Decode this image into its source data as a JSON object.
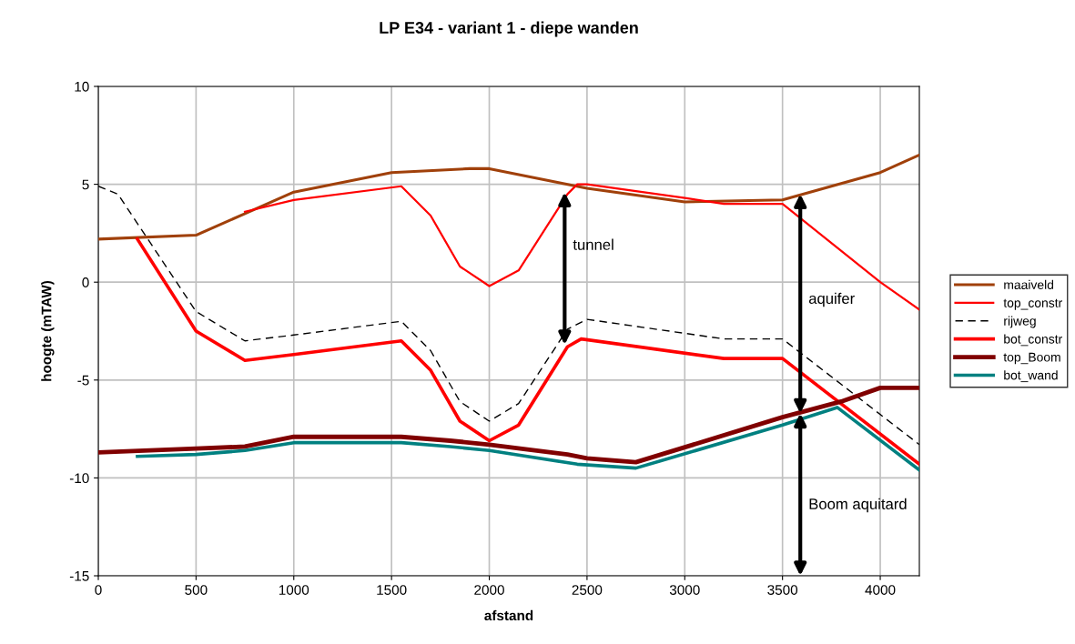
{
  "chart_data": {
    "type": "line",
    "title": "LP E34 - variant 1 - diepe wanden",
    "xlabel": "afstand",
    "ylabel": "hoogte (mTAW)",
    "xlim": [
      0,
      4200
    ],
    "xticks": [
      0,
      500,
      1000,
      1500,
      2000,
      2500,
      3000,
      3500,
      4000
    ],
    "ylim": [
      -15,
      10
    ],
    "yticks": [
      -15,
      -10,
      -5,
      0,
      5,
      10
    ],
    "grid": true,
    "legend": "right",
    "marker": "none",
    "series": [
      {
        "name": "maaiveld",
        "color": "#a0400a",
        "x": [
          0,
          500,
          750,
          1000,
          1500,
          1900,
          2000,
          2500,
          3000,
          3500,
          4000,
          4200
        ],
        "values": [
          2.2,
          2.4,
          3.5,
          4.6,
          5.6,
          5.8,
          5.8,
          4.8,
          4.1,
          4.2,
          5.6,
          6.5
        ]
      },
      {
        "name": "top_constr",
        "color": "#ff0000",
        "x": [
          750,
          1000,
          1550,
          1700,
          1850,
          2000,
          2150,
          2400,
          2450,
          2500,
          3000,
          3200,
          3500,
          4000,
          4200
        ],
        "values": [
          3.6,
          4.2,
          4.9,
          3.4,
          0.8,
          -0.2,
          0.6,
          4.5,
          5.0,
          5.0,
          4.3,
          4.0,
          4.0,
          0.0,
          -1.4
        ]
      },
      {
        "name": "rijweg",
        "color": "#000000",
        "line_style": "dashed",
        "x": [
          0,
          100,
          500,
          750,
          1000,
          1550,
          1700,
          1850,
          2000,
          2150,
          2400,
          2500,
          3200,
          3500,
          4200
        ],
        "values": [
          4.9,
          4.5,
          -1.5,
          -3.0,
          -2.7,
          -2.0,
          -3.5,
          -6.1,
          -7.1,
          -6.2,
          -2.4,
          -1.9,
          -2.9,
          -2.9,
          -8.3
        ]
      },
      {
        "name": "bot_constr",
        "color": "#ff0000",
        "x": [
          200,
          500,
          750,
          1000,
          1550,
          1700,
          1850,
          2000,
          2150,
          2400,
          2470,
          3200,
          3500,
          4200
        ],
        "values": [
          2.2,
          -2.5,
          -4.0,
          -3.7,
          -3.0,
          -4.5,
          -7.1,
          -8.1,
          -7.3,
          -3.3,
          -2.9,
          -3.9,
          -3.9,
          -9.3
        ]
      },
      {
        "name": "top_Boom",
        "color": "#800000",
        "x": [
          0,
          500,
          750,
          1000,
          1550,
          1800,
          2000,
          2400,
          2500,
          2750,
          3500,
          3800,
          4000,
          4200
        ],
        "values": [
          -8.7,
          -8.5,
          -8.4,
          -7.9,
          -7.9,
          -8.1,
          -8.3,
          -8.8,
          -9.0,
          -9.2,
          -6.9,
          -6.1,
          -5.4,
          -5.4
        ]
      },
      {
        "name": "bot_wand",
        "color": "#008080",
        "x": [
          200,
          500,
          750,
          1000,
          1550,
          1800,
          2000,
          2450,
          2750,
          3500,
          3780,
          4200
        ],
        "values": [
          -8.9,
          -8.8,
          -8.6,
          -8.2,
          -8.2,
          -8.4,
          -8.6,
          -9.3,
          -9.5,
          -7.3,
          -6.4,
          -9.6
        ]
      }
    ],
    "annotations": [
      "tunnel",
      "aquifer",
      "Boom aquitard"
    ]
  }
}
